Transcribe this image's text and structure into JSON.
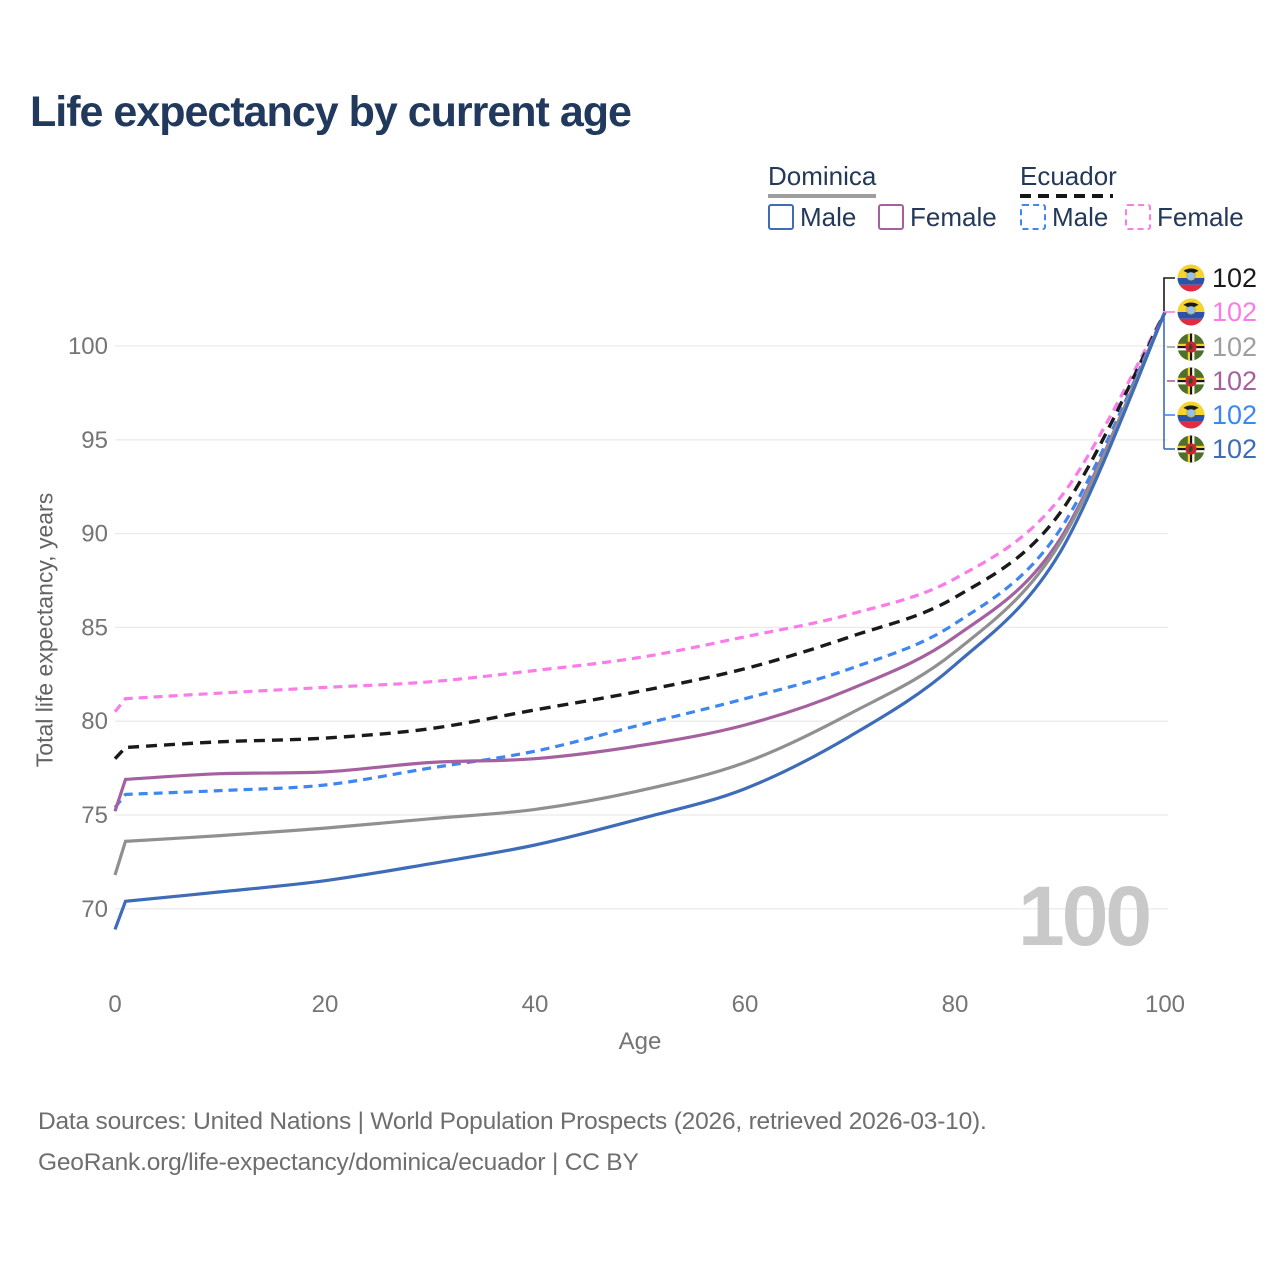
{
  "title": "Life expectancy by current age",
  "legend": {
    "groups": [
      {
        "country": "Dominica",
        "line_style": "solid",
        "line_color": "#9e9e9e",
        "items": [
          {
            "label": "Male",
            "color": "#3e6cb8",
            "dash": false
          },
          {
            "label": "Female",
            "color": "#a5619f",
            "dash": false
          }
        ]
      },
      {
        "country": "Ecuador",
        "line_style": "dashed",
        "line_color": "#161616",
        "items": [
          {
            "label": "Male",
            "color": "#3f87f0",
            "dash": true
          },
          {
            "label": "Female",
            "color": "#f97ce8",
            "dash": true
          }
        ]
      }
    ]
  },
  "chart_data": {
    "type": "line",
    "title": "Life expectancy by current age",
    "xlabel": "Age",
    "ylabel": "Total life expectancy, years",
    "x_ticks": [
      0,
      20,
      40,
      60,
      80,
      100
    ],
    "y_ticks": [
      70,
      75,
      80,
      85,
      90,
      95,
      100
    ],
    "xlim": [
      0,
      100
    ],
    "ylim": [
      67.5,
      103
    ],
    "grid": "horizontal-only",
    "legend_position": "top-right",
    "ages": [
      0,
      1,
      10,
      20,
      30,
      40,
      50,
      60,
      70,
      80,
      90,
      100
    ],
    "series": [
      {
        "id": "ecuador-female",
        "name": "Ecuador Female",
        "country": "Ecuador",
        "sex": "Female",
        "color": "#f97ce8",
        "dash": true,
        "values": [
          80.5,
          81.2,
          81.5,
          81.8,
          82.1,
          82.7,
          83.4,
          84.5,
          85.7,
          87.6,
          91.9,
          101.8
        ]
      },
      {
        "id": "ecuador-both",
        "name": "Ecuador",
        "country": "Ecuador",
        "sex": "Both",
        "color": "#1a1a1a",
        "dash": true,
        "values": [
          78.0,
          78.6,
          78.9,
          79.1,
          79.6,
          80.6,
          81.6,
          82.8,
          84.5,
          86.6,
          91.1,
          101.8
        ]
      },
      {
        "id": "ecuador-male",
        "name": "Ecuador Male",
        "country": "Ecuador",
        "sex": "Male",
        "color": "#3f87f0",
        "dash": true,
        "values": [
          75.4,
          76.1,
          76.3,
          76.6,
          77.5,
          78.4,
          79.8,
          81.2,
          82.8,
          85.2,
          90.2,
          101.8
        ]
      },
      {
        "id": "dominica-female",
        "name": "Dominica Female",
        "country": "Dominica",
        "sex": "Female",
        "color": "#a5619f",
        "dash": false,
        "values": [
          75.2,
          76.9,
          77.2,
          77.3,
          77.8,
          78.0,
          78.7,
          79.8,
          81.7,
          84.5,
          89.7,
          101.8
        ]
      },
      {
        "id": "dominica-both",
        "name": "Dominica",
        "country": "Dominica",
        "sex": "Both",
        "color": "#909090",
        "dash": false,
        "values": [
          71.8,
          73.6,
          73.9,
          74.3,
          74.8,
          75.3,
          76.3,
          77.8,
          80.4,
          83.7,
          89.5,
          101.8
        ]
      },
      {
        "id": "dominica-male",
        "name": "Dominica Male",
        "country": "Dominica",
        "sex": "Male",
        "color": "#3e6cb8",
        "dash": false,
        "values": [
          68.9,
          70.4,
          70.9,
          71.5,
          72.4,
          73.4,
          74.8,
          76.4,
          79.2,
          83.0,
          89.0,
          101.8
        ]
      }
    ],
    "end_labels": [
      {
        "text": "102",
        "flag": "ecuador",
        "color": "#1a1a1a",
        "series": "ecuador-both"
      },
      {
        "text": "102",
        "flag": "ecuador",
        "color": "#f97ce8",
        "series": "ecuador-female"
      },
      {
        "text": "102",
        "flag": "dominica",
        "color": "#9e9e9e",
        "series": "dominica-both"
      },
      {
        "text": "102",
        "flag": "dominica",
        "color": "#a5619f",
        "series": "dominica-female"
      },
      {
        "text": "102",
        "flag": "ecuador",
        "color": "#3f87f0",
        "series": "ecuador-male"
      },
      {
        "text": "102",
        "flag": "dominica",
        "color": "#3e6cb8",
        "series": "dominica-male"
      }
    ],
    "hover_age_watermark": "100"
  },
  "footer": {
    "line1": "Data sources: United Nations | World Population Prospects (2026, retrieved 2026-03-10).",
    "line2": "GeoRank.org/life-expectancy/dominica/ecuador | CC BY"
  }
}
